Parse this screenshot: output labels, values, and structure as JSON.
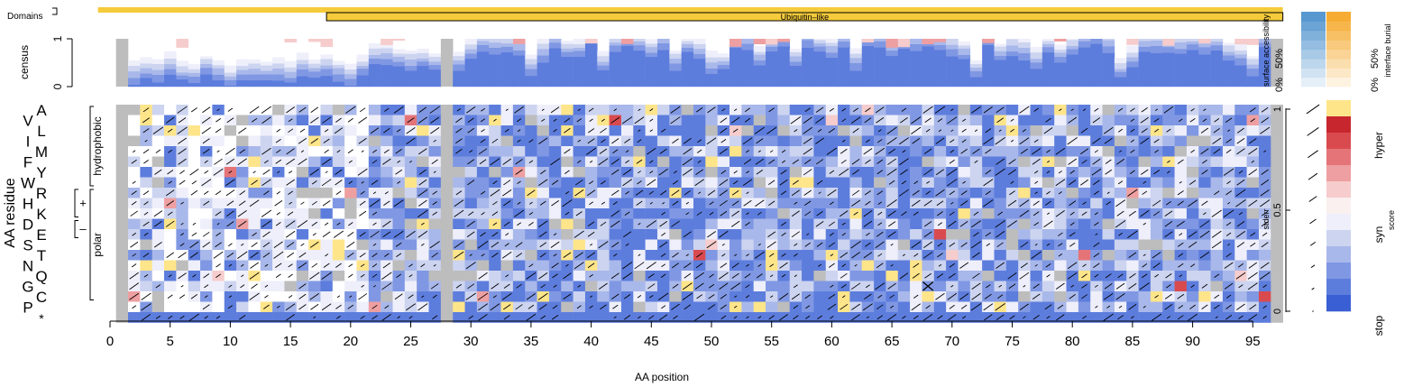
{
  "chart_data": {
    "type": "heatmap",
    "title": "",
    "xlabel": "AA position",
    "ylabel": "AA residue",
    "x_ticks": [
      0,
      5,
      10,
      15,
      20,
      25,
      30,
      35,
      40,
      45,
      50,
      55,
      60,
      65,
      70,
      75,
      80,
      85,
      90,
      95
    ],
    "x_range": [
      1,
      97
    ],
    "residues": [
      "A",
      "V",
      "L",
      "I",
      "M",
      "F",
      "Y",
      "W",
      "R",
      "H",
      "K",
      "D",
      "E",
      "S",
      "T",
      "N",
      "Q",
      "G",
      "C",
      "P",
      "*"
    ],
    "residue_groups": [
      {
        "label": "hydrophobic",
        "from": "A",
        "to": "W"
      },
      {
        "label": "polar",
        "from": "R",
        "to": "C"
      },
      {
        "label": "+",
        "from": "R",
        "to": "K"
      },
      {
        "label": "–",
        "from": "D",
        "to": "E"
      }
    ],
    "domains_track": {
      "label": "Domains",
      "full_bar_range": [
        1,
        97
      ],
      "domains": [
        {
          "name": "Ubiquitin–like",
          "start": 19,
          "end": 97
        }
      ]
    },
    "census_track": {
      "label": "census",
      "yticks": [
        0,
        1
      ]
    },
    "surface_legend": {
      "label": "surface accessibility",
      "ticks": [
        "0%",
        "50%"
      ],
      "color": "#4a90cc"
    },
    "interface_legend": {
      "label": "interface burial",
      "ticks": [
        "0%",
        "50%"
      ],
      "color": "#f5a623"
    },
    "stderr_legend": {
      "label": "stderr",
      "ticks": [
        0,
        0.5,
        1
      ]
    },
    "score_legend": {
      "label": "score",
      "labels": [
        "hyper",
        "syn",
        "stop"
      ],
      "colors": [
        "#ffe58a",
        "#c8262e",
        "#d94a4f",
        "#e47478",
        "#ee9fa1",
        "#f6cccc",
        "#faf0f0",
        "#eeeffa",
        "#ccd4f0",
        "#a9b8ea",
        "#8098e3",
        "#5d7ddd",
        "#3a5fd4"
      ]
    },
    "missing_color": "#bdbdbd",
    "special_columns": {
      "gray_full": [
        1,
        28,
        97
      ],
      "white_mostly": [
        2,
        3,
        4,
        5,
        6,
        7,
        8,
        9,
        10,
        11,
        12,
        13,
        14,
        15,
        16,
        17,
        18,
        19,
        20,
        21
      ],
      "dark_mostly": [
        30,
        31,
        32,
        37,
        38,
        39,
        40,
        42,
        43,
        44,
        45,
        46,
        48,
        49,
        52,
        53,
        56,
        58,
        59,
        60,
        61,
        63,
        64,
        65,
        66,
        67,
        68,
        70,
        71,
        73,
        74,
        75,
        80,
        81,
        82,
        86,
        87,
        88,
        90,
        91,
        96
      ]
    },
    "wt_marker": {
      "position": 68,
      "residue": "G"
    }
  }
}
